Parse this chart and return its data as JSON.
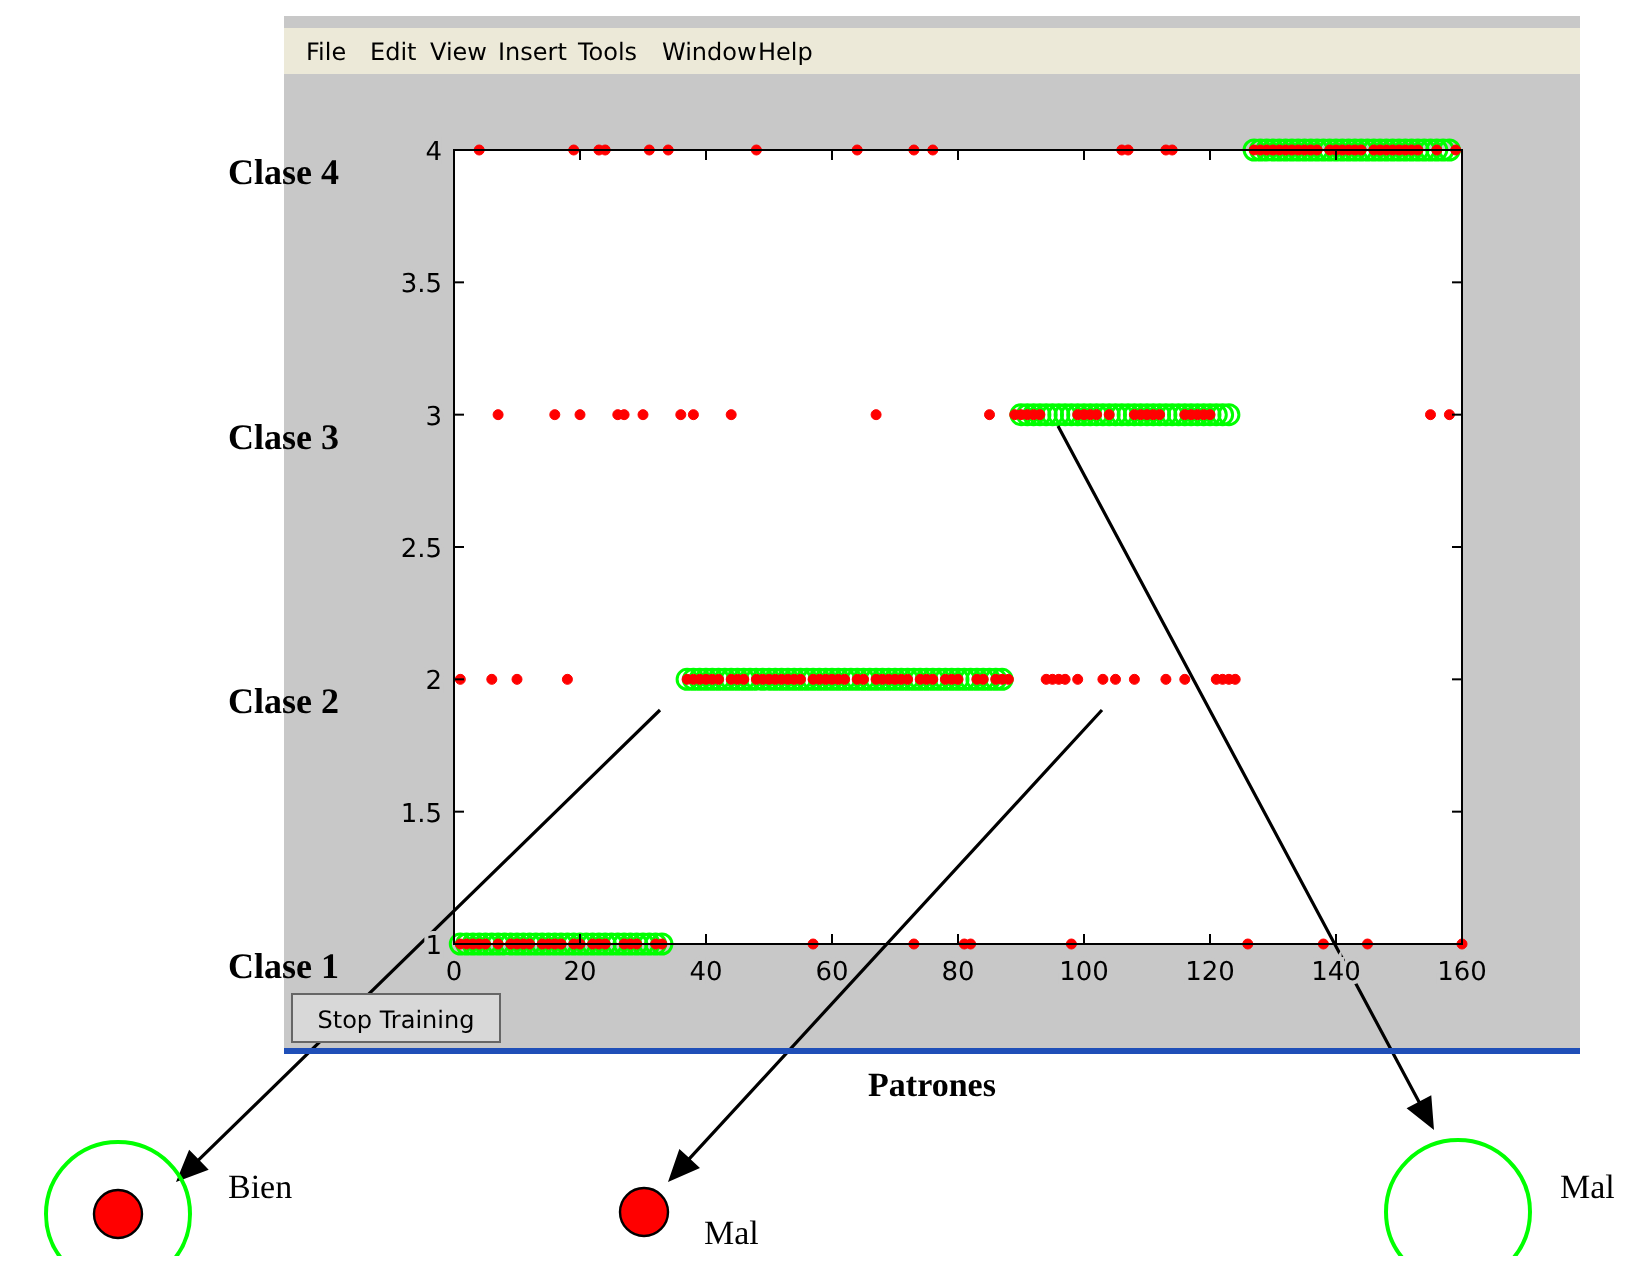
{
  "chart_data": {
    "type": "scatter",
    "xlabel": "Patrones",
    "xlim": [
      0,
      160
    ],
    "xticks": [
      0,
      20,
      40,
      60,
      80,
      100,
      120,
      140,
      160
    ],
    "ylim": [
      1,
      4
    ],
    "yticks": [
      1,
      1.5,
      2,
      2.5,
      3,
      3.5,
      4
    ],
    "marker": "circle",
    "grid": false,
    "series": [
      {
        "color": "#00ff00",
        "x": [
          1,
          2,
          3,
          4,
          5,
          6,
          7,
          8,
          9,
          10,
          11,
          12,
          13,
          14,
          15,
          16,
          17,
          18,
          19,
          20,
          21,
          22,
          23,
          24,
          25,
          26,
          27,
          28,
          29,
          30,
          31,
          32,
          33,
          37,
          38,
          39,
          40,
          41,
          42,
          43,
          44,
          45,
          46,
          47,
          48,
          49,
          50,
          51,
          52,
          53,
          54,
          55,
          56,
          57,
          58,
          59,
          60,
          61,
          62,
          63,
          64,
          65,
          66,
          67,
          68,
          69,
          70,
          71,
          72,
          73,
          74,
          75,
          76,
          77,
          78,
          79,
          80,
          81,
          82,
          83,
          84,
          85,
          86,
          87,
          90,
          91,
          92,
          93,
          94,
          95,
          96,
          97,
          98,
          99,
          100,
          101,
          102,
          103,
          104,
          105,
          106,
          107,
          108,
          109,
          110,
          111,
          112,
          113,
          114,
          115,
          116,
          117,
          118,
          119,
          120,
          121,
          122,
          123,
          127,
          128,
          129,
          130,
          131,
          132,
          133,
          134,
          135,
          136,
          137,
          138,
          139,
          140,
          141,
          142,
          143,
          144,
          145,
          146,
          147,
          148,
          149,
          150,
          151,
          152,
          153,
          154,
          155,
          156,
          157,
          158
        ],
        "values": [
          1,
          1,
          1,
          1,
          1,
          1,
          1,
          1,
          1,
          1,
          1,
          1,
          1,
          1,
          1,
          1,
          1,
          1,
          1,
          1,
          1,
          1,
          1,
          1,
          1,
          1,
          1,
          1,
          1,
          1,
          1,
          1,
          1,
          2,
          2,
          2,
          2,
          2,
          2,
          2,
          2,
          2,
          2,
          2,
          2,
          2,
          2,
          2,
          2,
          2,
          2,
          2,
          2,
          2,
          2,
          2,
          2,
          2,
          2,
          2,
          2,
          2,
          2,
          2,
          2,
          2,
          2,
          2,
          2,
          2,
          2,
          2,
          2,
          2,
          2,
          2,
          2,
          2,
          2,
          2,
          2,
          2,
          2,
          2,
          3,
          3,
          3,
          3,
          3,
          3,
          3,
          3,
          3,
          3,
          3,
          3,
          3,
          3,
          3,
          3,
          3,
          3,
          3,
          3,
          3,
          3,
          3,
          3,
          3,
          3,
          3,
          3,
          3,
          3,
          3,
          3,
          3,
          3,
          4,
          4,
          4,
          4,
          4,
          4,
          4,
          4,
          4,
          4,
          4,
          4,
          4,
          4,
          4,
          4,
          4,
          4,
          4,
          4,
          4,
          4,
          4,
          4,
          4,
          4,
          4,
          4,
          4,
          4,
          4,
          4
        ]
      },
      {
        "color": "#ff0000",
        "x": [
          1,
          2,
          3,
          4,
          5,
          7,
          9,
          10,
          11,
          12,
          14,
          15,
          16,
          17,
          19,
          20,
          22,
          23,
          24,
          27,
          28,
          29,
          32,
          33,
          57,
          73,
          81,
          82,
          98,
          126,
          138,
          145,
          160,
          1,
          6,
          10,
          18,
          37,
          38,
          39,
          40,
          41,
          42,
          44,
          45,
          46,
          48,
          49,
          50,
          51,
          52,
          53,
          54,
          55,
          57,
          58,
          59,
          60,
          61,
          62,
          64,
          65,
          67,
          68,
          69,
          70,
          71,
          72,
          74,
          75,
          76,
          78,
          79,
          80,
          83,
          84,
          86,
          87,
          88,
          94,
          95,
          96,
          97,
          99,
          103,
          105,
          108,
          113,
          116,
          121,
          122,
          123,
          124,
          7,
          16,
          20,
          26,
          27,
          30,
          36,
          38,
          44,
          67,
          85,
          89,
          90,
          91,
          92,
          93,
          99,
          100,
          101,
          102,
          104,
          108,
          109,
          110,
          111,
          112,
          116,
          117,
          118,
          119,
          120,
          155,
          158,
          4,
          19,
          23,
          24,
          31,
          34,
          48,
          64,
          73,
          76,
          106,
          107,
          113,
          114,
          127,
          128,
          129,
          130,
          131,
          132,
          133,
          134,
          135,
          136,
          137,
          139,
          140,
          141,
          142,
          143,
          144,
          146,
          147,
          148,
          149,
          150,
          151,
          152,
          153,
          156,
          159
        ],
        "values": [
          1,
          1,
          1,
          1,
          1,
          1,
          1,
          1,
          1,
          1,
          1,
          1,
          1,
          1,
          1,
          1,
          1,
          1,
          1,
          1,
          1,
          1,
          1,
          1,
          1,
          1,
          1,
          1,
          1,
          1,
          1,
          1,
          1,
          2,
          2,
          2,
          2,
          2,
          2,
          2,
          2,
          2,
          2,
          2,
          2,
          2,
          2,
          2,
          2,
          2,
          2,
          2,
          2,
          2,
          2,
          2,
          2,
          2,
          2,
          2,
          2,
          2,
          2,
          2,
          2,
          2,
          2,
          2,
          2,
          2,
          2,
          2,
          2,
          2,
          2,
          2,
          2,
          2,
          2,
          2,
          2,
          2,
          2,
          2,
          2,
          2,
          2,
          2,
          2,
          2,
          2,
          2,
          2,
          3,
          3,
          3,
          3,
          3,
          3,
          3,
          3,
          3,
          3,
          3,
          3,
          3,
          3,
          3,
          3,
          3,
          3,
          3,
          3,
          3,
          3,
          3,
          3,
          3,
          3,
          3,
          3,
          3,
          3,
          3,
          3,
          3,
          4,
          4,
          4,
          4,
          4,
          4,
          4,
          4,
          4,
          4,
          4,
          4,
          4,
          4,
          4,
          4,
          4,
          4,
          4,
          4,
          4,
          4,
          4,
          4,
          4,
          4,
          4,
          4,
          4,
          4,
          4,
          4,
          4,
          4,
          4,
          4,
          4,
          4,
          4,
          4,
          4
        ]
      }
    ],
    "annotations": [
      "Clase 4",
      "Clase 3",
      "Clase 2",
      "Clase 1",
      "Bien",
      "Mal",
      "Mal",
      "File",
      "Edit",
      "View",
      "Insert",
      "Tools",
      "Window",
      "Help",
      "Stop Training"
    ]
  }
}
